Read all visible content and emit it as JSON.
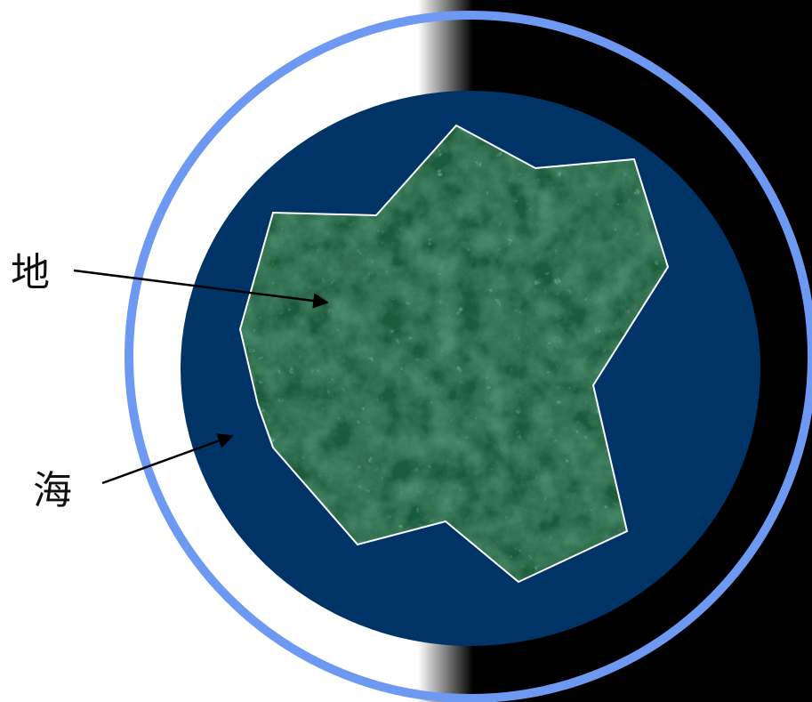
{
  "labels": {
    "land": "地",
    "sea": "海"
  },
  "colors": {
    "background_left": "#ffffff",
    "background_right": "#000000",
    "outer_ring": "#6d99f3",
    "sea": "#003366",
    "land_base": "#1d5c3a",
    "land_outline": "#ffffff",
    "arrow": "#000000"
  }
}
